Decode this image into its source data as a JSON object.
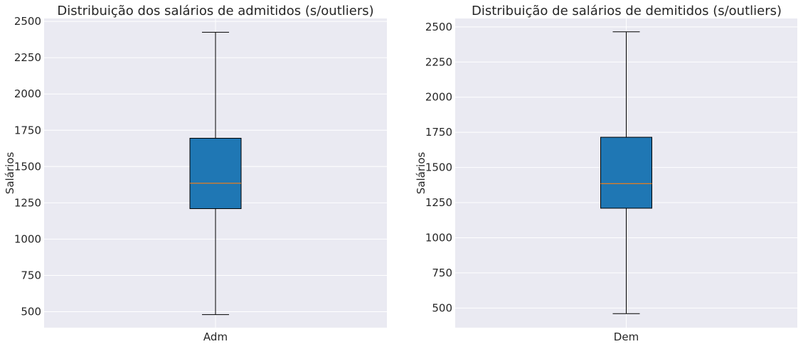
{
  "chart_data": [
    {
      "type": "boxplot",
      "title": "Distribuição dos salários de admitidos (s/outliers)",
      "ylabel": "Salários",
      "xlabel": "",
      "categories": [
        "Adm"
      ],
      "ylim": [
        390,
        2520
      ],
      "yticks": [
        500,
        750,
        1000,
        1250,
        1500,
        1750,
        2000,
        2250,
        2500
      ],
      "grid": true,
      "box": {
        "whisker_low": 480,
        "q1": 1210,
        "median": 1385,
        "q3": 1695,
        "whisker_high": 2425
      },
      "colors": {
        "box": "#1f77b4",
        "median": "#ff7f0e",
        "background": "#eaeaf2"
      }
    },
    {
      "type": "boxplot",
      "title": "Distribuição de salários de demitidos (s/outliers)",
      "ylabel": "Salários",
      "xlabel": "",
      "categories": [
        "Dem"
      ],
      "ylim": [
        360,
        2560
      ],
      "yticks": [
        500,
        750,
        1000,
        1250,
        1500,
        1750,
        2000,
        2250,
        2500
      ],
      "grid": true,
      "box": {
        "whisker_low": 460,
        "q1": 1210,
        "median": 1385,
        "q3": 1715,
        "whisker_high": 2465
      },
      "colors": {
        "box": "#1f77b4",
        "median": "#ff7f0e",
        "background": "#eaeaf2"
      }
    }
  ]
}
